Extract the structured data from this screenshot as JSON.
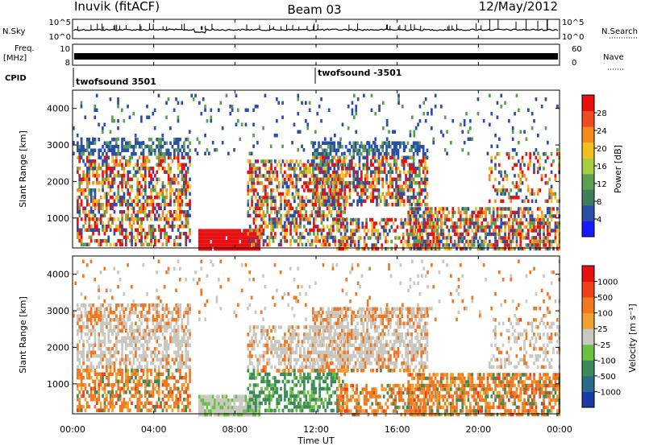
{
  "header": {
    "station": "Inuvik (fitACF)",
    "beam": "Beam 03",
    "date": "12/May/2012"
  },
  "top_panels": {
    "nsky_label": "N.Sky",
    "nsky_ticks": [
      "10^5",
      "10^0"
    ],
    "nsearch_label": "N.Search",
    "nsearch_ticks": [
      "10^5",
      "10^0"
    ],
    "freq_label_line1": "Freq.",
    "freq_label_line2": "[MHz]",
    "freq_ticks": [
      "10",
      "8"
    ],
    "nave_label": "Nave",
    "nave_ticks": [
      "60",
      "0"
    ],
    "cpid_label": "CPID",
    "cpid_segments": [
      {
        "name": "twofsound 3501",
        "start_hour": 0
      },
      {
        "name": "twofsound -3501",
        "start_hour": 12
      }
    ]
  },
  "chart_data": [
    {
      "type": "heatmap",
      "panel": "power",
      "ylabel": "Slant Range [km]",
      "ylim": [
        180,
        4500
      ],
      "yticks": [
        "4000",
        "3000",
        "2000",
        "1000"
      ],
      "ytick_values": [
        4000,
        3000,
        2000,
        1000
      ],
      "xlim_hours": [
        0,
        24
      ],
      "colorbar": {
        "label": "Power [dB]",
        "ticks": [
          "28",
          "24",
          "20",
          "16",
          "12",
          "8",
          "4"
        ],
        "tick_values": [
          28,
          24,
          20,
          16,
          12,
          8,
          4
        ],
        "range": [
          0,
          32
        ],
        "colors": [
          "#1a1aff",
          "#2a4fa8",
          "#3c7f5a",
          "#5aa050",
          "#a8cc40",
          "#f0c020",
          "#f58a1e",
          "#f04a1e",
          "#e81010"
        ]
      }
    },
    {
      "type": "heatmap",
      "panel": "velocity",
      "ylabel": "Slant Range [km]",
      "ylim": [
        180,
        4500
      ],
      "yticks": [
        "4000",
        "3000",
        "2000",
        "1000"
      ],
      "ytick_values": [
        4000,
        3000,
        2000,
        1000
      ],
      "xlim_hours": [
        0,
        24
      ],
      "colorbar": {
        "label": "Velocity [m s⁻¹]",
        "ticks": [
          "1000",
          "500",
          "100",
          "25",
          "-25",
          "-100",
          "-500",
          "-1000"
        ],
        "colors": [
          "#1a3aa8",
          "#2a6a8a",
          "#3a8a5a",
          "#6ac040",
          "#c8c8c0",
          "#f0a030",
          "#f07820",
          "#f04018",
          "#e81010"
        ]
      }
    }
  ],
  "x_axis": {
    "label": "Time UT",
    "ticks": [
      "00:00",
      "04:00",
      "08:00",
      "12:00",
      "16:00",
      "20:00",
      "00:00"
    ],
    "tick_hours": [
      0,
      4,
      8,
      12,
      16,
      20,
      24
    ]
  }
}
